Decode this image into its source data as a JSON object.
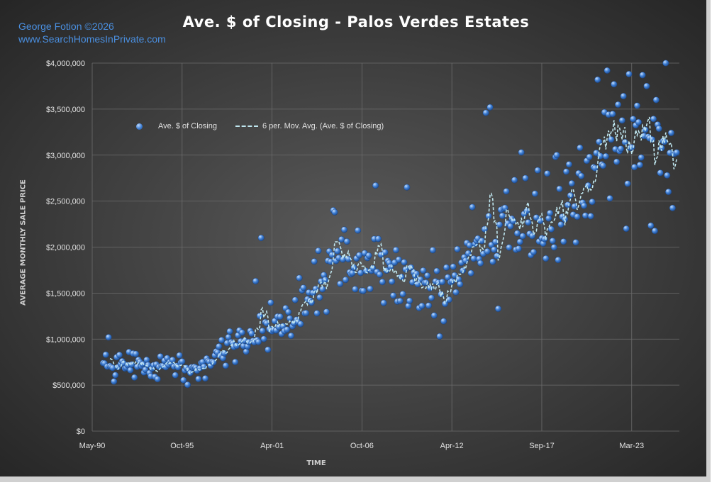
{
  "credits": {
    "line1": "George Fotion ©2026",
    "line2": "www.SearchHomesInPrivate.com"
  },
  "colors": {
    "background_center": "#5a5a5a",
    "background_edge": "#262626",
    "point": "#3f7fd4",
    "moving_average": "#bfe6ef",
    "credit_text": "#4a8fe0"
  },
  "chart_data": {
    "type": "scatter",
    "title": "Ave. $ of Closing - Palos Verdes Estates",
    "xlabel": "TIME",
    "ylabel": "AVERAGE MONTHLY SALE PRICE",
    "x_tick_labels": [
      "May-90",
      "Oct-95",
      "Apr-01",
      "Oct-06",
      "Apr-12",
      "Sep-17",
      "Mar-23"
    ],
    "y_tick_labels": [
      "$0",
      "$500,000",
      "$1,000,000",
      "$1,500,000",
      "$2,000,000",
      "$2,500,000",
      "$3,000,000",
      "$3,500,000",
      "$4,000,000"
    ],
    "ylim": [
      0,
      4000000
    ],
    "xlim": [
      "1990-05",
      "2026-04"
    ],
    "grid": true,
    "legend_position": "top-left",
    "series": [
      {
        "name": "Ave. $ of Closing",
        "style": "markers",
        "anchors": [
          [
            "1991-01",
            750000
          ],
          [
            "1992-01",
            760000
          ],
          [
            "1993-01",
            700000
          ],
          [
            "1994-01",
            650000
          ],
          [
            "1995-01",
            720000
          ],
          [
            "1996-01",
            680000
          ],
          [
            "1997-01",
            720000
          ],
          [
            "1998-01",
            830000
          ],
          [
            "1999-01",
            900000
          ],
          [
            "2000-01",
            1020000
          ],
          [
            "2001-01",
            1120000
          ],
          [
            "2002-01",
            1150000
          ],
          [
            "2003-01",
            1300000
          ],
          [
            "2004-01",
            1550000
          ],
          [
            "2005-01",
            1780000
          ],
          [
            "2006-01",
            1860000
          ],
          [
            "2007-01",
            1890000
          ],
          [
            "2008-01",
            1850000
          ],
          [
            "2009-01",
            1680000
          ],
          [
            "2010-01",
            1620000
          ],
          [
            "2011-01",
            1650000
          ],
          [
            "2012-01",
            1550000
          ],
          [
            "2013-01",
            1780000
          ],
          [
            "2014-01",
            1920000
          ],
          [
            "2015-01",
            2050000
          ],
          [
            "2016-01",
            2170000
          ],
          [
            "2017-01",
            2250000
          ],
          [
            "2018-01",
            2300000
          ],
          [
            "2019-01",
            2340000
          ],
          [
            "2020-01",
            2480000
          ],
          [
            "2021-01",
            2800000
          ],
          [
            "2022-01",
            3420000
          ],
          [
            "2023-01",
            3250000
          ],
          [
            "2024-01",
            3200000
          ],
          [
            "2025-01",
            3050000
          ],
          [
            "2026-01",
            3150000
          ]
        ],
        "highlights": [
          [
            "1991-05",
            1020000
          ],
          [
            "2000-09",
            2100000
          ],
          [
            "2000-05",
            1630000
          ],
          [
            "2005-02",
            2400000
          ],
          [
            "2005-03",
            2380000
          ],
          [
            "2007-09",
            2670000
          ],
          [
            "2009-08",
            2650000
          ],
          [
            "2011-08",
            1030000
          ],
          [
            "2014-06",
            3460000
          ],
          [
            "2014-09",
            3520000
          ],
          [
            "2015-03",
            1330000
          ],
          [
            "2016-08",
            3030000
          ],
          [
            "2018-03",
            2800000
          ],
          [
            "2018-09",
            2980000
          ],
          [
            "2019-03",
            2060000
          ],
          [
            "2020-03",
            3080000
          ],
          [
            "2021-04",
            3820000
          ],
          [
            "2021-11",
            3920000
          ],
          [
            "2022-01",
            2530000
          ],
          [
            "2022-04",
            3770000
          ],
          [
            "2023-01",
            2200000
          ],
          [
            "2023-02",
            2690000
          ],
          [
            "2024-01",
            3870000
          ],
          [
            "2024-04",
            3750000
          ],
          [
            "2024-11",
            3600000
          ],
          [
            "2025-06",
            4000000
          ],
          [
            "2025-08",
            2600000
          ],
          [
            "2025-07",
            2780000
          ]
        ]
      },
      {
        "name": "6 per. Mov. Avg. (Ave. $ of Closing)",
        "style": "dashed-line",
        "window": 6
      }
    ]
  }
}
